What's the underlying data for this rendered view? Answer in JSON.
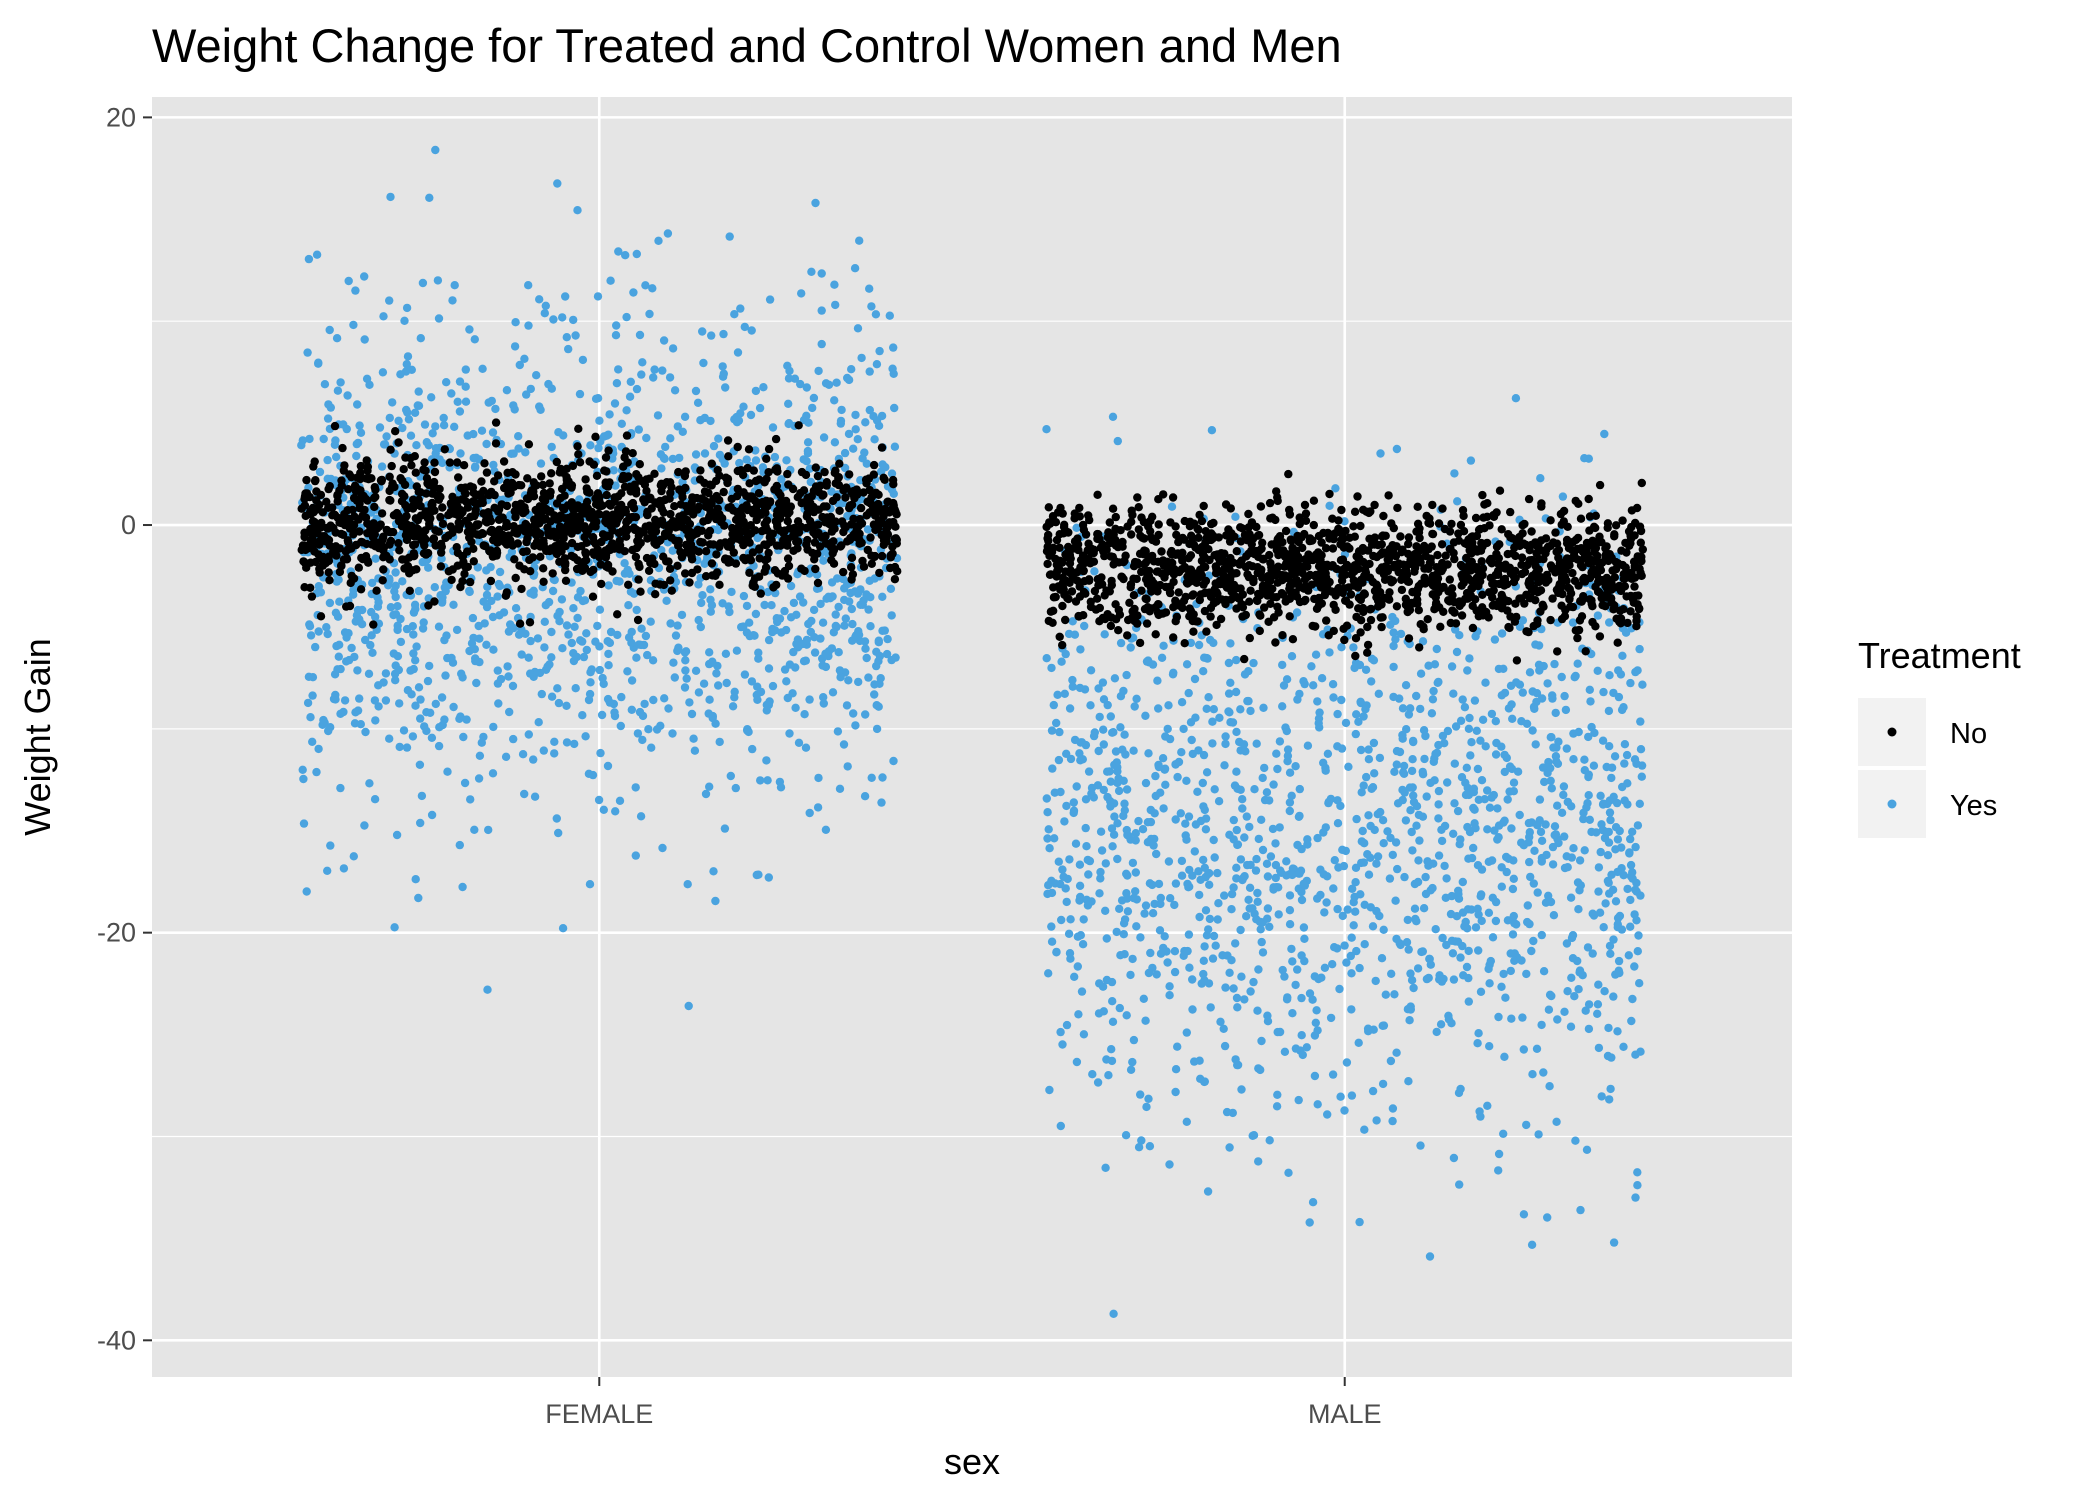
{
  "chart_data": {
    "type": "scatter",
    "title": "Weight Change for Treated and Control Women and Men",
    "xlabel": "sex",
    "ylabel": "Weight Gain",
    "categories": [
      "FEMALE",
      "MALE"
    ],
    "y_ticks": [
      20,
      0,
      -20,
      -40
    ],
    "y_tick_labels": [
      "20",
      "0",
      "-20",
      "-40"
    ],
    "ylim": [
      -41.8,
      21.0
    ],
    "jitter_width": 0.4,
    "grid": true,
    "panel_background": "#e5e5e5",
    "legend": {
      "title": "Treatment",
      "placement": "right",
      "entries": [
        {
          "label": "No",
          "color": "#000000"
        },
        {
          "label": "Yes",
          "color": "#4aa3df"
        }
      ]
    },
    "series": [
      {
        "name": "No",
        "color": "#000000",
        "groups": [
          {
            "category": "FEMALE",
            "n": 1500,
            "mean": 0.2,
            "sd": 1.5
          },
          {
            "category": "MALE",
            "n": 1500,
            "mean": -2.2,
            "sd": 1.5
          }
        ]
      },
      {
        "name": "Yes",
        "color": "#4aa3df",
        "groups": [
          {
            "category": "FEMALE",
            "n": 1500,
            "mean": -1.5,
            "sd": 6.0
          },
          {
            "category": "MALE",
            "n": 1500,
            "mean": -15.0,
            "sd": 7.0
          }
        ]
      }
    ],
    "extreme_points": [
      {
        "series": "Yes",
        "category": "FEMALE",
        "x_offset": -0.22,
        "y": 18.4
      },
      {
        "series": "Yes",
        "category": "FEMALE",
        "x_offset": -0.28,
        "y": 16.1
      },
      {
        "series": "Yes",
        "category": "FEMALE",
        "x_offset": 0.29,
        "y": 15.8
      },
      {
        "series": "Yes",
        "category": "FEMALE",
        "x_offset": -0.15,
        "y": -22.8
      },
      {
        "series": "Yes",
        "category": "FEMALE",
        "x_offset": 0.12,
        "y": -23.6
      },
      {
        "series": "Yes",
        "category": "MALE",
        "x_offset": -0.31,
        "y": -38.7
      },
      {
        "series": "Yes",
        "category": "MALE",
        "x_offset": 0.02,
        "y": -34.2
      },
      {
        "series": "Yes",
        "category": "MALE",
        "x_offset": 0.39,
        "y": -33.0
      },
      {
        "series": "Yes",
        "category": "MALE",
        "x_offset": -0.4,
        "y": 4.7
      }
    ]
  }
}
